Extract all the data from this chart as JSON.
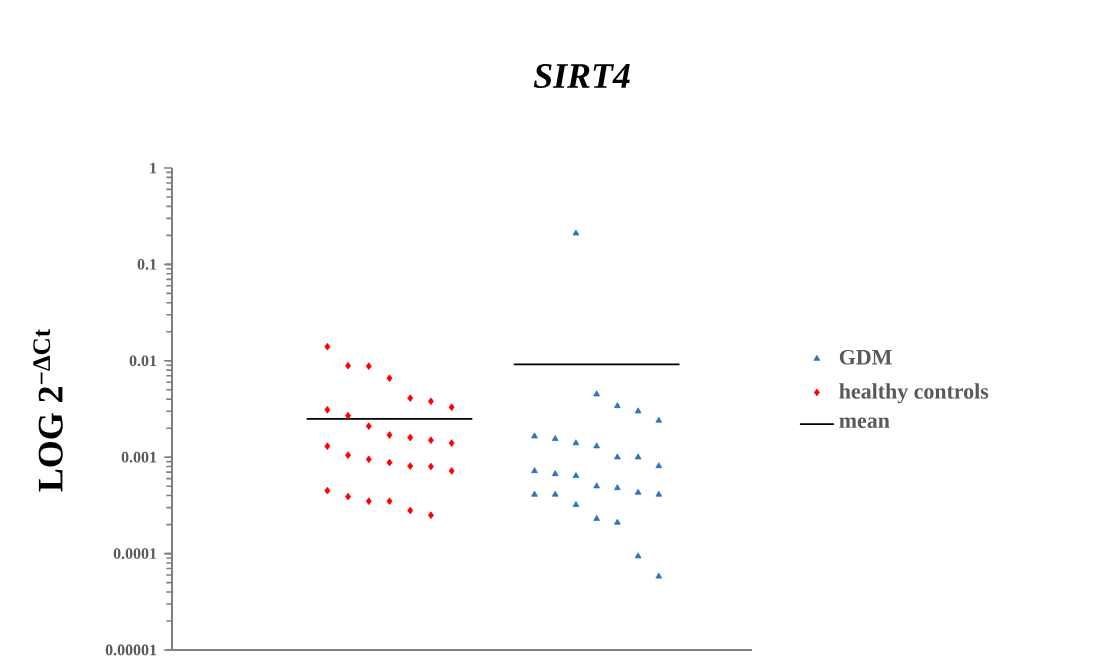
{
  "chart_data": {
    "type": "scatter",
    "title": "*SIRT4*",
    "ylabel": "LOG 2$^{−ΔCt}$",
    "log": "y",
    "grid": false,
    "legend": "right",
    "tick_labels": "y",
    "categories": [
      null,
      null,
      null,
      null,
      null,
      null,
      null,
      null,
      null,
      null,
      null,
      null,
      null,
      null,
      null,
      null,
      null,
      null,
      null,
      null,
      null,
      null,
      null,
      null,
      null,
      null,
      null,
      null
    ],
    "ylim": [
      1e-05,
      1
    ],
    "yticks": [
      {
        "value": 1e-05,
        "label": "0.00001"
      },
      {
        "value": 0.0001,
        "label": "0.0001"
      },
      {
        "value": 0.001,
        "label": "0.001"
      },
      {
        "value": 0.01,
        "label": "0.01"
      },
      {
        "value": 0.1,
        "label": "0.1"
      },
      {
        "value": 1,
        "label": "1"
      }
    ],
    "series": [
      {
        "name": "GDM",
        "color": "#2e75b6",
        "marker": "triangle",
        "values": [
          null,
          null,
          null,
          null,
          null,
          null,
          null,
          null,
          null,
          null,
          null,
          null,
          null,
          null,
          null,
          null,
          null,
          null,
          null,
          0.21,
          null,
          null,
          null,
          null,
          null,
          null,
          null,
          null
        ]
      },
      {
        "color": "#2e75b6",
        "marker": "triangle",
        "values": [
          null,
          null,
          null,
          null,
          null,
          null,
          null,
          null,
          null,
          null,
          null,
          null,
          null,
          null,
          null,
          null,
          null,
          null,
          null,
          null,
          0.0045,
          0.0034,
          0.003,
          0.0024,
          null,
          null,
          null,
          null
        ]
      },
      {
        "color": "#2e75b6",
        "marker": "triangle",
        "values": [
          null,
          null,
          null,
          null,
          null,
          null,
          null,
          null,
          null,
          null,
          null,
          null,
          null,
          null,
          null,
          null,
          null,
          0.00165,
          0.00155,
          0.0014,
          0.0013,
          0.001,
          0.001,
          0.00081,
          null,
          null,
          null,
          null
        ]
      },
      {
        "color": "#2e75b6",
        "marker": "triangle",
        "values": [
          null,
          null,
          null,
          null,
          null,
          null,
          null,
          null,
          null,
          null,
          null,
          null,
          null,
          null,
          null,
          null,
          null,
          0.00072,
          0.00067,
          0.00064,
          0.0005,
          0.00048,
          0.00043,
          0.00041,
          null,
          null,
          null,
          null
        ]
      },
      {
        "color": "#2e75b6",
        "marker": "triangle",
        "values": [
          null,
          null,
          null,
          null,
          null,
          null,
          null,
          null,
          null,
          null,
          null,
          null,
          null,
          null,
          null,
          null,
          null,
          0.00041,
          0.00041,
          0.00032,
          0.00023,
          0.00021,
          9.4e-05,
          5.8e-05,
          null,
          null,
          null,
          null
        ]
      },
      {
        "name": "healthy controls",
        "color": "#ff0000",
        "marker": "diamond",
        "values": [
          null,
          null,
          null,
          null,
          null,
          null,
          null,
          0.014,
          0.0089,
          0.0088,
          0.0066,
          0.0041,
          0.0038,
          0.0033,
          null,
          null,
          null,
          null,
          null,
          null,
          null,
          null,
          null,
          null,
          null,
          null,
          null,
          null
        ]
      },
      {
        "color": "#ff0000",
        "marker": "diamond",
        "values": [
          null,
          null,
          null,
          null,
          null,
          null,
          null,
          0.0031,
          0.0027,
          0.0021,
          0.0017,
          0.0016,
          0.0015,
          0.0014,
          null,
          null,
          null,
          null,
          null,
          null,
          null,
          null,
          null,
          null,
          null,
          null,
          null,
          null
        ]
      },
      {
        "color": "#ff0000",
        "marker": "diamond",
        "values": [
          null,
          null,
          null,
          null,
          null,
          null,
          null,
          0.0013,
          0.00105,
          0.00095,
          0.00088,
          0.00081,
          0.0008,
          0.00072,
          null,
          null,
          null,
          null,
          null,
          null,
          null,
          null,
          null,
          null,
          null,
          null,
          null,
          null
        ]
      },
      {
        "color": "#ff0000",
        "marker": "diamond",
        "values": [
          null,
          null,
          null,
          null,
          null,
          null,
          null,
          0.00045,
          0.00039,
          0.00035,
          0.00035,
          0.00028,
          0.00025,
          null,
          null,
          null,
          null,
          null,
          null,
          null,
          null,
          null,
          null,
          null,
          null,
          null,
          null,
          null
        ]
      },
      {
        "name": "mean",
        "type": "line",
        "color": "#000000",
        "marker": "none",
        "line_style": "solid",
        "values": [
          null,
          null,
          null,
          null,
          null,
          null,
          0.0025,
          0.0025,
          0.0025,
          0.0025,
          0.0025,
          0.0025,
          0.0025,
          0.0025,
          0.0025,
          null,
          0.0092,
          0.0092,
          0.0092,
          0.0092,
          0.0092,
          0.0092,
          0.0092,
          0.0092,
          0.0092,
          null,
          null,
          null
        ]
      }
    ]
  }
}
